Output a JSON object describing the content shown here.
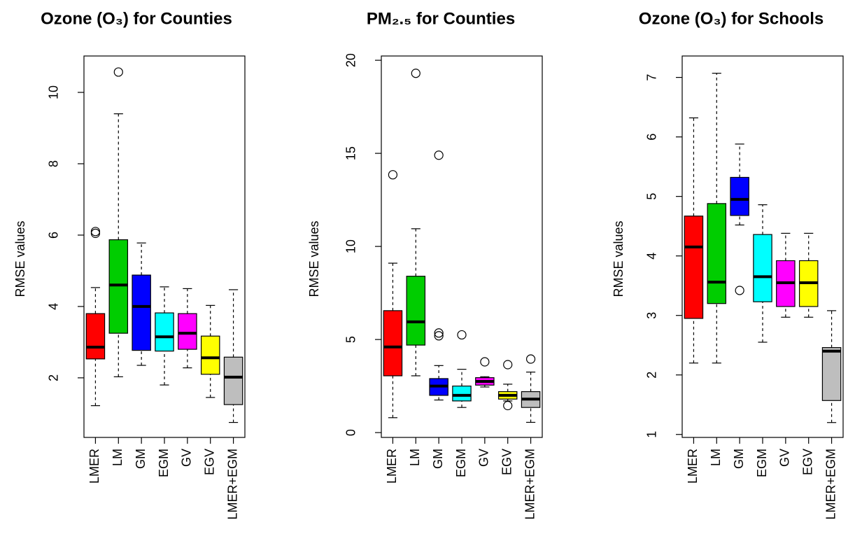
{
  "chart_data": [
    {
      "type": "boxplot",
      "title": "Ozone (O₃) for Counties",
      "ylabel": "RMSE values",
      "categories": [
        "LMER",
        "LM",
        "GM",
        "EGM",
        "GV",
        "EGV",
        "LMER+EGM"
      ],
      "colors": [
        "#ff0000",
        "#00cd00",
        "#0000ff",
        "#00ffff",
        "#ff00ff",
        "#ffff00",
        "#bebebe"
      ],
      "boxes": [
        {
          "whislo": 1.22,
          "q1": 2.53,
          "med": 2.86,
          "q3": 3.8,
          "whishi": 4.53,
          "fliers": [
            6.1,
            6.05
          ]
        },
        {
          "whislo": 2.03,
          "q1": 3.25,
          "med": 4.6,
          "q3": 5.87,
          "whishi": 9.4,
          "fliers": [
            10.57
          ]
        },
        {
          "whislo": 2.35,
          "q1": 2.77,
          "med": 4.0,
          "q3": 4.88,
          "whishi": 5.78
        },
        {
          "whislo": 1.8,
          "q1": 2.75,
          "med": 3.15,
          "q3": 3.82,
          "whishi": 4.55
        },
        {
          "whislo": 2.28,
          "q1": 2.8,
          "med": 3.25,
          "q3": 3.8,
          "whishi": 4.5
        },
        {
          "whislo": 1.45,
          "q1": 2.1,
          "med": 2.56,
          "q3": 3.17,
          "whishi": 4.03
        },
        {
          "whislo": 0.75,
          "q1": 1.25,
          "med": 2.02,
          "q3": 2.58,
          "whishi": 4.47
        }
      ],
      "ylim": [
        0.33,
        11.02
      ],
      "yticks": [
        2,
        4,
        6,
        8,
        10
      ]
    },
    {
      "type": "boxplot",
      "title": "PM₂.₅ for Counties",
      "ylabel": "RMSE values",
      "categories": [
        "LMER",
        "LM",
        "GM",
        "EGM",
        "GV",
        "EGV",
        "LMER+EGM"
      ],
      "colors": [
        "#ff0000",
        "#00cd00",
        "#0000ff",
        "#00ffff",
        "#ff00ff",
        "#ffff00",
        "#bebebe"
      ],
      "boxes": [
        {
          "whislo": 0.8,
          "q1": 3.05,
          "med": 4.6,
          "q3": 6.55,
          "whishi": 9.1,
          "fliers": [
            13.85
          ]
        },
        {
          "whislo": 3.05,
          "q1": 4.7,
          "med": 5.95,
          "q3": 8.4,
          "whishi": 10.95,
          "fliers": [
            19.3
          ]
        },
        {
          "whislo": 1.75,
          "q1": 2.0,
          "med": 2.5,
          "q3": 2.9,
          "whishi": 3.6,
          "fliers": [
            5.2,
            5.35,
            14.9
          ]
        },
        {
          "whislo": 1.35,
          "q1": 1.7,
          "med": 2.0,
          "q3": 2.5,
          "whishi": 3.4,
          "fliers": [
            5.25
          ]
        },
        {
          "whislo": 2.45,
          "q1": 2.55,
          "med": 2.75,
          "q3": 2.95,
          "whishi": 3.0,
          "fliers": [
            3.8
          ]
        },
        {
          "whislo": 1.7,
          "q1": 1.8,
          "med": 2.0,
          "q3": 2.2,
          "whishi": 2.6,
          "fliers": [
            1.45,
            3.65
          ]
        },
        {
          "whislo": 0.55,
          "q1": 1.35,
          "med": 1.8,
          "q3": 2.2,
          "whishi": 3.25,
          "fliers": [
            3.95
          ]
        }
      ],
      "ylim": [
        -0.26,
        20.23
      ],
      "yticks": [
        0,
        5,
        10,
        15,
        20
      ]
    },
    {
      "type": "boxplot",
      "title": "Ozone (O₃) for Schools",
      "ylabel": "RMSE values",
      "categories": [
        "LMER",
        "LM",
        "GM",
        "EGM",
        "GV",
        "EGV",
        "LMER+EGM"
      ],
      "colors": [
        "#ff0000",
        "#00cd00",
        "#0000ff",
        "#00ffff",
        "#ff00ff",
        "#ffff00",
        "#bebebe"
      ],
      "boxes": [
        {
          "whislo": 2.2,
          "q1": 2.95,
          "med": 4.15,
          "q3": 4.67,
          "whishi": 6.32
        },
        {
          "whislo": 2.2,
          "q1": 3.2,
          "med": 3.56,
          "q3": 4.88,
          "whishi": 7.07
        },
        {
          "whislo": 4.52,
          "q1": 4.68,
          "med": 4.95,
          "q3": 5.32,
          "whishi": 5.88,
          "fliers": [
            3.42
          ]
        },
        {
          "whislo": 2.55,
          "q1": 3.23,
          "med": 3.65,
          "q3": 4.36,
          "whishi": 4.86
        },
        {
          "whislo": 2.97,
          "q1": 3.15,
          "med": 3.55,
          "q3": 3.92,
          "whishi": 4.38
        },
        {
          "whislo": 2.97,
          "q1": 3.15,
          "med": 3.55,
          "q3": 3.92,
          "whishi": 4.38
        },
        {
          "whislo": 1.2,
          "q1": 1.57,
          "med": 2.4,
          "q3": 2.46,
          "whishi": 3.08
        }
      ],
      "ylim": [
        0.95,
        7.36
      ],
      "yticks": [
        1,
        2,
        3,
        4,
        5,
        6,
        7
      ]
    }
  ]
}
